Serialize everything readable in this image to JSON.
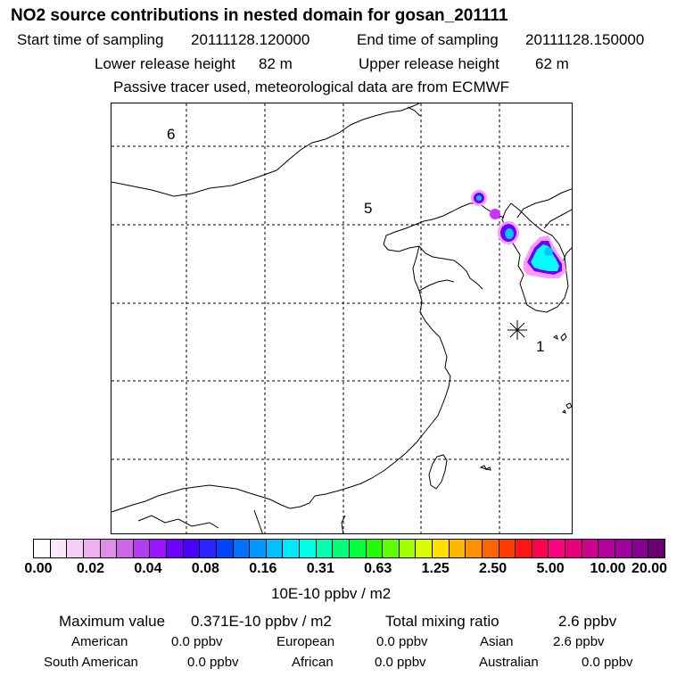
{
  "header": {
    "title": "NO2 source contributions in nested domain for gosan_201111",
    "start_label": "Start time of sampling",
    "start_value": "20111128.120000",
    "end_label": "End time of sampling",
    "end_value": "20111128.150000",
    "lower_label": "Lower release height",
    "lower_value": "82 m",
    "upper_label": "Upper release height",
    "upper_value": "62 m",
    "note": "Passive tracer used, meteorological data are from ECMWF"
  },
  "map": {
    "region_labels": [
      "6",
      "5",
      "1"
    ],
    "grid_lines": "dashed",
    "plume_colors": [
      "#00ffff",
      "#00c8ff",
      "#6a00ff",
      "#cc33ff",
      "#ff99ff"
    ]
  },
  "colorbar": {
    "ticks": [
      "0.00",
      "0.02",
      "0.04",
      "0.08",
      "0.16",
      "0.31",
      "0.63",
      "1.25",
      "2.50",
      "5.00",
      "10.00",
      "20.00"
    ],
    "unit": "10E-10 ppbv / m2",
    "colors": [
      "#ffffff",
      "#fbe6fb",
      "#f6cdf6",
      "#efaff0",
      "#e08ee6",
      "#cc66e6",
      "#b43cf0",
      "#9a14ff",
      "#6e00ff",
      "#4a00ff",
      "#2a22ff",
      "#0044ff",
      "#0070ff",
      "#0098ff",
      "#00c0ff",
      "#00e8ff",
      "#00ffe6",
      "#00ffb0",
      "#00ff78",
      "#00ff3c",
      "#20ff00",
      "#60ff00",
      "#a0ff00",
      "#d8ff00",
      "#ffe000",
      "#ffb800",
      "#ff9000",
      "#ff6400",
      "#ff3a00",
      "#ff1414",
      "#ff0050",
      "#ff0080",
      "#e8007a",
      "#d00090",
      "#b800a0",
      "#a000a0",
      "#860090",
      "#6a0070"
    ]
  },
  "summary": {
    "max_label": "Maximum value",
    "max_value": "0.371E-10 ppbv / m2",
    "total_label": "Total mixing ratio",
    "total_value": "2.6 ppbv",
    "regions": [
      {
        "name": "American",
        "value": "0.0 ppbv"
      },
      {
        "name": "European",
        "value": "0.0 ppbv"
      },
      {
        "name": "Asian",
        "value": "2.6 ppbv"
      },
      {
        "name": "South American",
        "value": "0.0 ppbv"
      },
      {
        "name": "African",
        "value": "0.0 ppbv"
      },
      {
        "name": "Australian",
        "value": "0.0 ppbv"
      }
    ]
  }
}
